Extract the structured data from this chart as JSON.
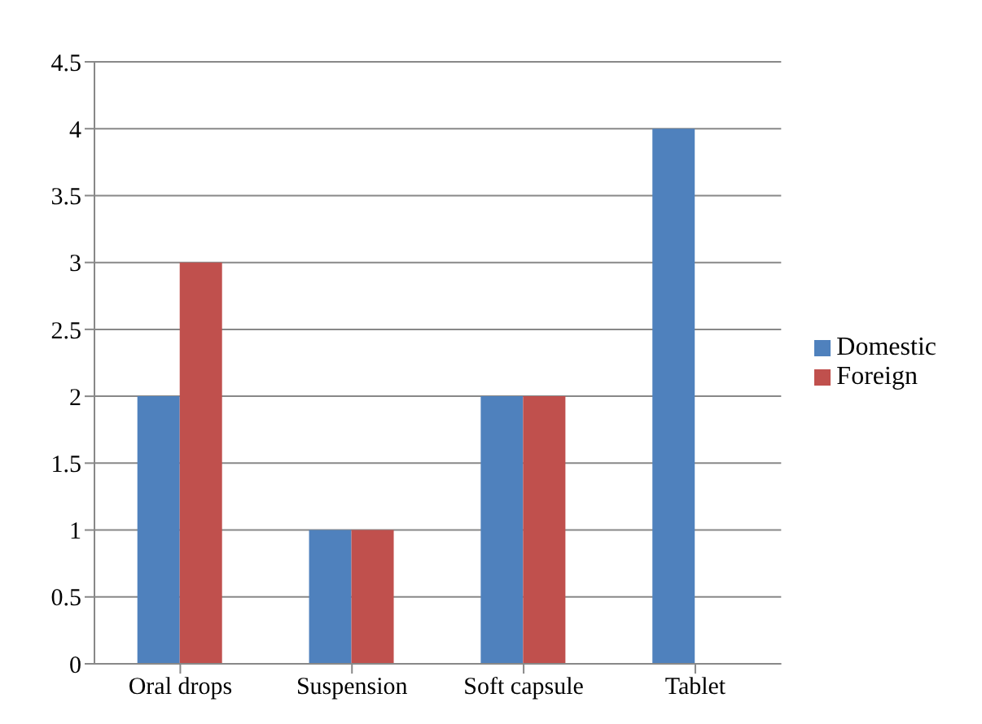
{
  "chart_data": {
    "type": "bar",
    "categories": [
      "Oral drops",
      "Suspension",
      "Soft capsule",
      "Tablet"
    ],
    "series": [
      {
        "name": "Domestic",
        "color": "#4f81bd",
        "values": [
          2,
          1,
          2,
          4
        ]
      },
      {
        "name": "Foreign",
        "color": "#c0504d",
        "values": [
          3,
          1,
          2,
          0
        ]
      }
    ],
    "ylim": [
      0,
      4.5
    ],
    "yticks": [
      0,
      0.5,
      1,
      1.5,
      2,
      2.5,
      3,
      3.5,
      4,
      4.5
    ],
    "grid": "y",
    "legend": "right"
  }
}
